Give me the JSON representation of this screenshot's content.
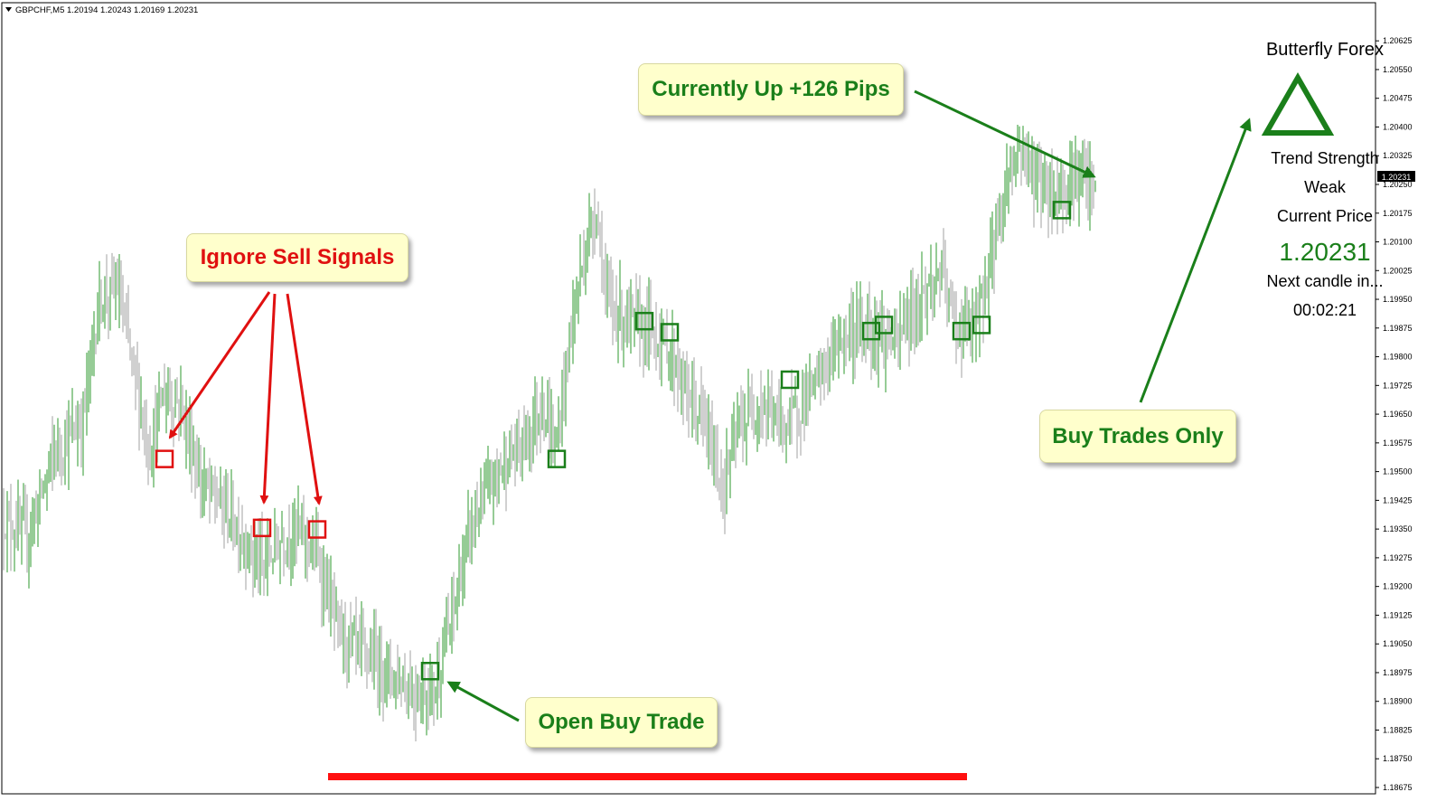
{
  "symbol_header": "GBPCHF,M5  1.20194 1.20243 1.20169 1.20231",
  "current_price_tag": "1.20231",
  "panel": {
    "title": "Butterfly Forex",
    "trend_label": "Trend Strength",
    "trend_value": "Weak",
    "price_label": "Current Price",
    "price_value": "1.20231",
    "next_candle_label": "Next candle in...",
    "countdown": "00:02:21",
    "triangle_color": "#1a7f1a"
  },
  "annotations": {
    "ignore_sell": "Ignore Sell Signals",
    "open_buy": "Open Buy Trade",
    "currently_up": "Currently Up +126 Pips",
    "buy_only": "Buy Trades Only"
  },
  "colors": {
    "bull_bar": "#2e9a2e",
    "bear_bar": "#a0a0a0",
    "sell_signal": "#e01010",
    "buy_signal": "#1a7f1a",
    "arrow_red": "#e01010",
    "arrow_green": "#1a7f1a",
    "green_text": "#1a7f1a",
    "red_text": "#e01010"
  },
  "chart_data": {
    "type": "ohlc",
    "ylim": [
      1.18675,
      1.20675
    ],
    "y_ticks": [
      "1.20625",
      "1.20550",
      "1.20475",
      "1.20400",
      "1.20325",
      "1.20250",
      "1.20175",
      "1.20100",
      "1.20025",
      "1.19950",
      "1.19875",
      "1.19800",
      "1.19725",
      "1.19650",
      "1.19575",
      "1.19500",
      "1.19425",
      "1.19350",
      "1.19275",
      "1.19200",
      "1.19125",
      "1.19050",
      "1.18975",
      "1.18900",
      "1.18825",
      "1.18750",
      "1.18675"
    ],
    "series": [
      {
        "name": "price",
        "x": [
          0,
          30,
          60,
          90,
          110,
          130,
          150,
          165,
          180,
          200,
          220,
          250,
          275,
          290,
          310,
          330,
          350,
          375,
          400,
          430,
          460,
          480,
          500,
          520,
          550,
          580,
          600,
          615,
          630,
          645,
          660,
          670,
          690,
          715,
          740,
          760,
          780,
          800,
          815,
          840,
          870,
          900,
          930,
          960,
          990,
          1020,
          1040,
          1060,
          1080,
          1100,
          1115,
          1130,
          1150,
          1170,
          1190,
          1210
        ],
        "values": [
          1.1938,
          1.1933,
          1.1955,
          1.1962,
          1.1995,
          1.1998,
          1.1974,
          1.1955,
          1.197,
          1.1968,
          1.1948,
          1.194,
          1.193,
          1.1925,
          1.1932,
          1.1935,
          1.1928,
          1.1908,
          1.1903,
          1.1898,
          1.1892,
          1.1893,
          1.1912,
          1.1935,
          1.195,
          1.1958,
          1.1968,
          1.1955,
          1.1985,
          1.2005,
          1.202,
          1.1995,
          1.199,
          1.1988,
          1.1982,
          1.197,
          1.1962,
          1.1945,
          1.196,
          1.1968,
          1.1962,
          1.1972,
          1.1985,
          1.1988,
          1.1983,
          1.1996,
          1.2002,
          1.1987,
          1.1988,
          1.201,
          1.2028,
          1.2035,
          1.2025,
          1.2022,
          1.2028,
          1.2023
        ]
      }
    ],
    "sell_signals": [
      {
        "x": 182,
        "y": 1.19533
      },
      {
        "x": 290,
        "y": 1.19353
      },
      {
        "x": 351,
        "y": 1.19349
      }
    ],
    "buy_signals": [
      {
        "x": 476,
        "y": 1.18979
      },
      {
        "x": 616,
        "y": 1.19533
      },
      {
        "x": 713,
        "y": 1.19893
      },
      {
        "x": 741,
        "y": 1.19864
      },
      {
        "x": 874,
        "y": 1.1974
      },
      {
        "x": 964,
        "y": 1.19867
      },
      {
        "x": 978,
        "y": 1.19883
      },
      {
        "x": 1064,
        "y": 1.19867
      },
      {
        "x": 1086,
        "y": 1.19883
      },
      {
        "x": 1175,
        "y": 1.20183
      }
    ]
  }
}
